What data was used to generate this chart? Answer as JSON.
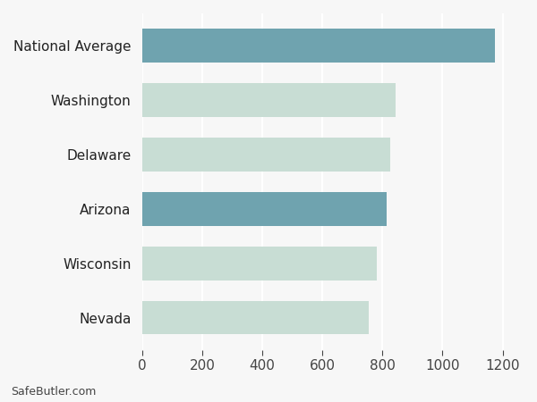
{
  "categories": [
    "Nevada",
    "Wisconsin",
    "Arizona",
    "Delaware",
    "Washington",
    "National Average"
  ],
  "values": [
    755,
    780,
    815,
    825,
    845,
    1175
  ],
  "highlight_color": "#6fa3af",
  "normal_color": "#c8ddd4",
  "highlighted": [
    2,
    5
  ],
  "background_color": "#f7f7f7",
  "xlim": [
    0,
    1270
  ],
  "xticks": [
    0,
    200,
    400,
    600,
    800,
    1000,
    1200
  ],
  "footer_text": "SafeButler.com",
  "tick_fontsize": 11,
  "label_fontsize": 11,
  "bar_height": 0.62,
  "grid_color": "#ffffff",
  "grid_linewidth": 1.5
}
